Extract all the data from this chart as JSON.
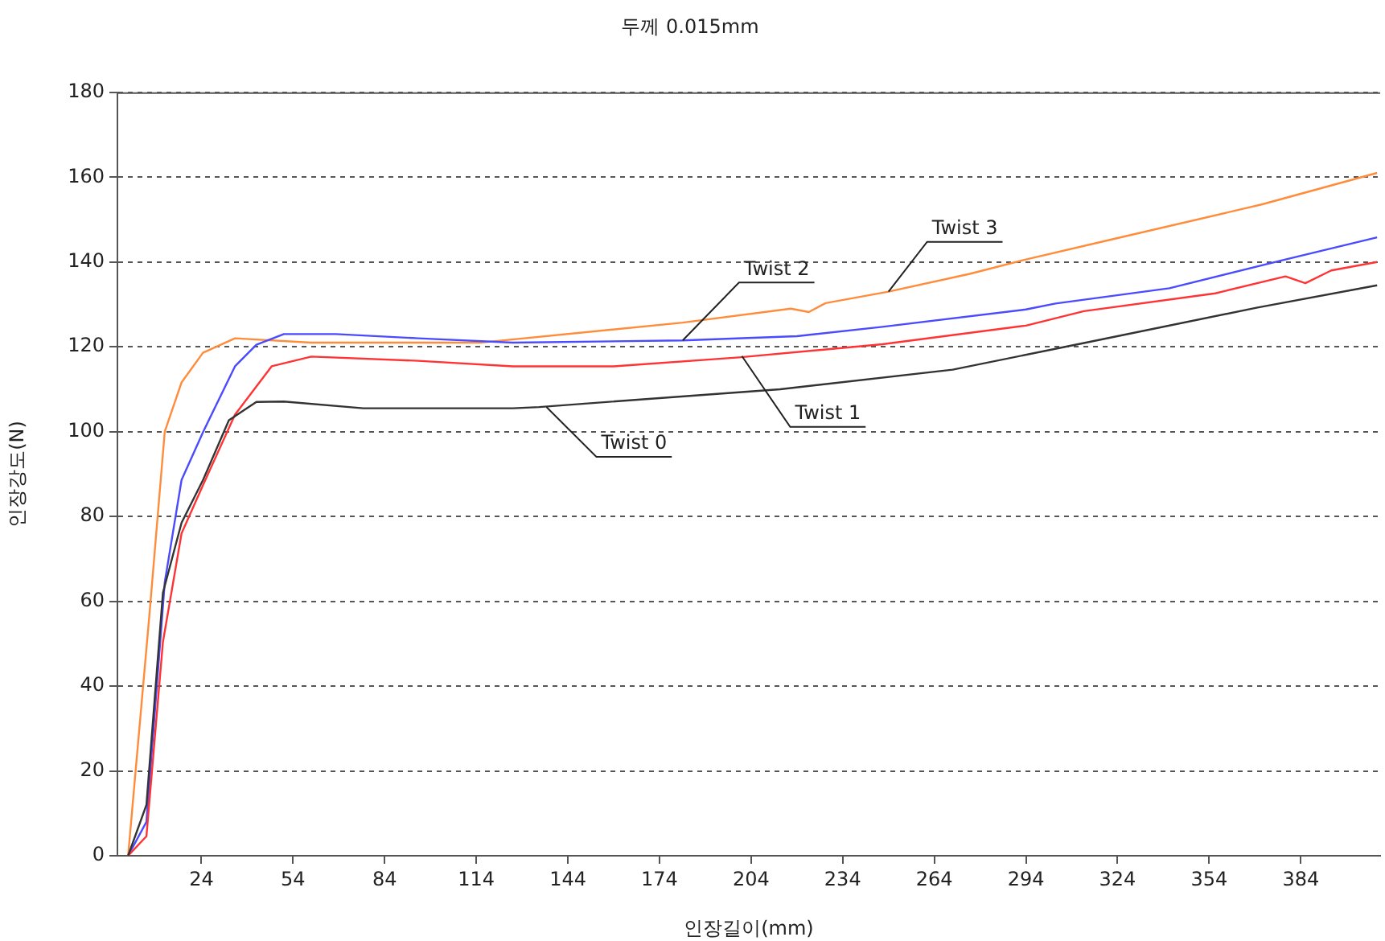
{
  "chart_data": {
    "type": "line",
    "title": "두께 0.015mm",
    "xlabel": "인장길이(mm)",
    "ylabel": "인장강도(N)",
    "xlim": [
      -3.5,
      410
    ],
    "xticks": [
      24,
      54,
      84,
      114,
      144,
      174,
      204,
      234,
      264,
      294,
      324,
      354,
      384
    ],
    "ylim": [
      0,
      180
    ],
    "yticks": [
      0,
      20,
      40,
      60,
      80,
      100,
      120,
      140,
      160,
      180
    ],
    "grid": "y",
    "legend": false,
    "marker": "none",
    "line_style": "solid",
    "series": [
      {
        "color": "#333333",
        "x": [
          0,
          6,
          11.4,
          17.5,
          24.6,
          33,
          42,
          51,
          77,
          126,
          134.6,
          213.5,
          270,
          313,
          369.5,
          409
        ],
        "values": [
          0,
          12,
          62,
          78.5,
          88.7,
          102.7,
          107,
          107.1,
          105.5,
          105.5,
          105.8,
          110,
          114.6,
          120.9,
          129.2,
          134.5
        ]
      },
      {
        "color": "#ff3333",
        "x": [
          0,
          6,
          11.4,
          17.5,
          24.6,
          35,
          47,
          60,
          95,
          126,
          159,
          200,
          247,
          294,
          313,
          356,
          379,
          385.5,
          394,
          409
        ],
        "values": [
          0,
          4.6,
          50.4,
          76,
          87.5,
          104,
          115.4,
          117.7,
          116.7,
          115.4,
          115.4,
          117.5,
          120.6,
          125,
          128.4,
          132.6,
          136.6,
          135,
          138,
          140
        ]
      },
      {
        "color": "#4a4aff",
        "x": [
          0,
          6,
          12,
          17.5,
          24.6,
          35,
          42,
          51,
          68,
          95,
          126,
          181.6,
          219,
          247,
          294,
          303.7,
          341,
          379,
          409
        ],
        "values": [
          0,
          8,
          64.5,
          88.6,
          100,
          115.4,
          120.5,
          123,
          123,
          122,
          121,
          121.5,
          122.5,
          124.7,
          128.8,
          130.2,
          133.8,
          140.6,
          145.8
        ]
      },
      {
        "color": "#ff8c3a",
        "x": [
          0,
          7,
          12,
          17.5,
          24.5,
          35,
          60,
          115.8,
          181.6,
          217,
          222.9,
          228.4,
          249,
          275.6,
          294,
          322.6,
          371.4,
          409
        ],
        "values": [
          0,
          57,
          100,
          111.6,
          118.6,
          122,
          121,
          121,
          125.7,
          129,
          128.2,
          130.3,
          133,
          137.2,
          140.6,
          145.4,
          153.6,
          161
        ]
      }
    ],
    "annotations": [
      {
        "text": "Twist 0",
        "x": 137,
        "y": 105.8
      },
      {
        "text": "Twist 1",
        "x": 201,
        "y": 117.8
      },
      {
        "text": "Twist 2",
        "x": 181.6,
        "y": 121.5
      },
      {
        "text": "Twist 3",
        "x": 249,
        "y": 133
      }
    ]
  }
}
